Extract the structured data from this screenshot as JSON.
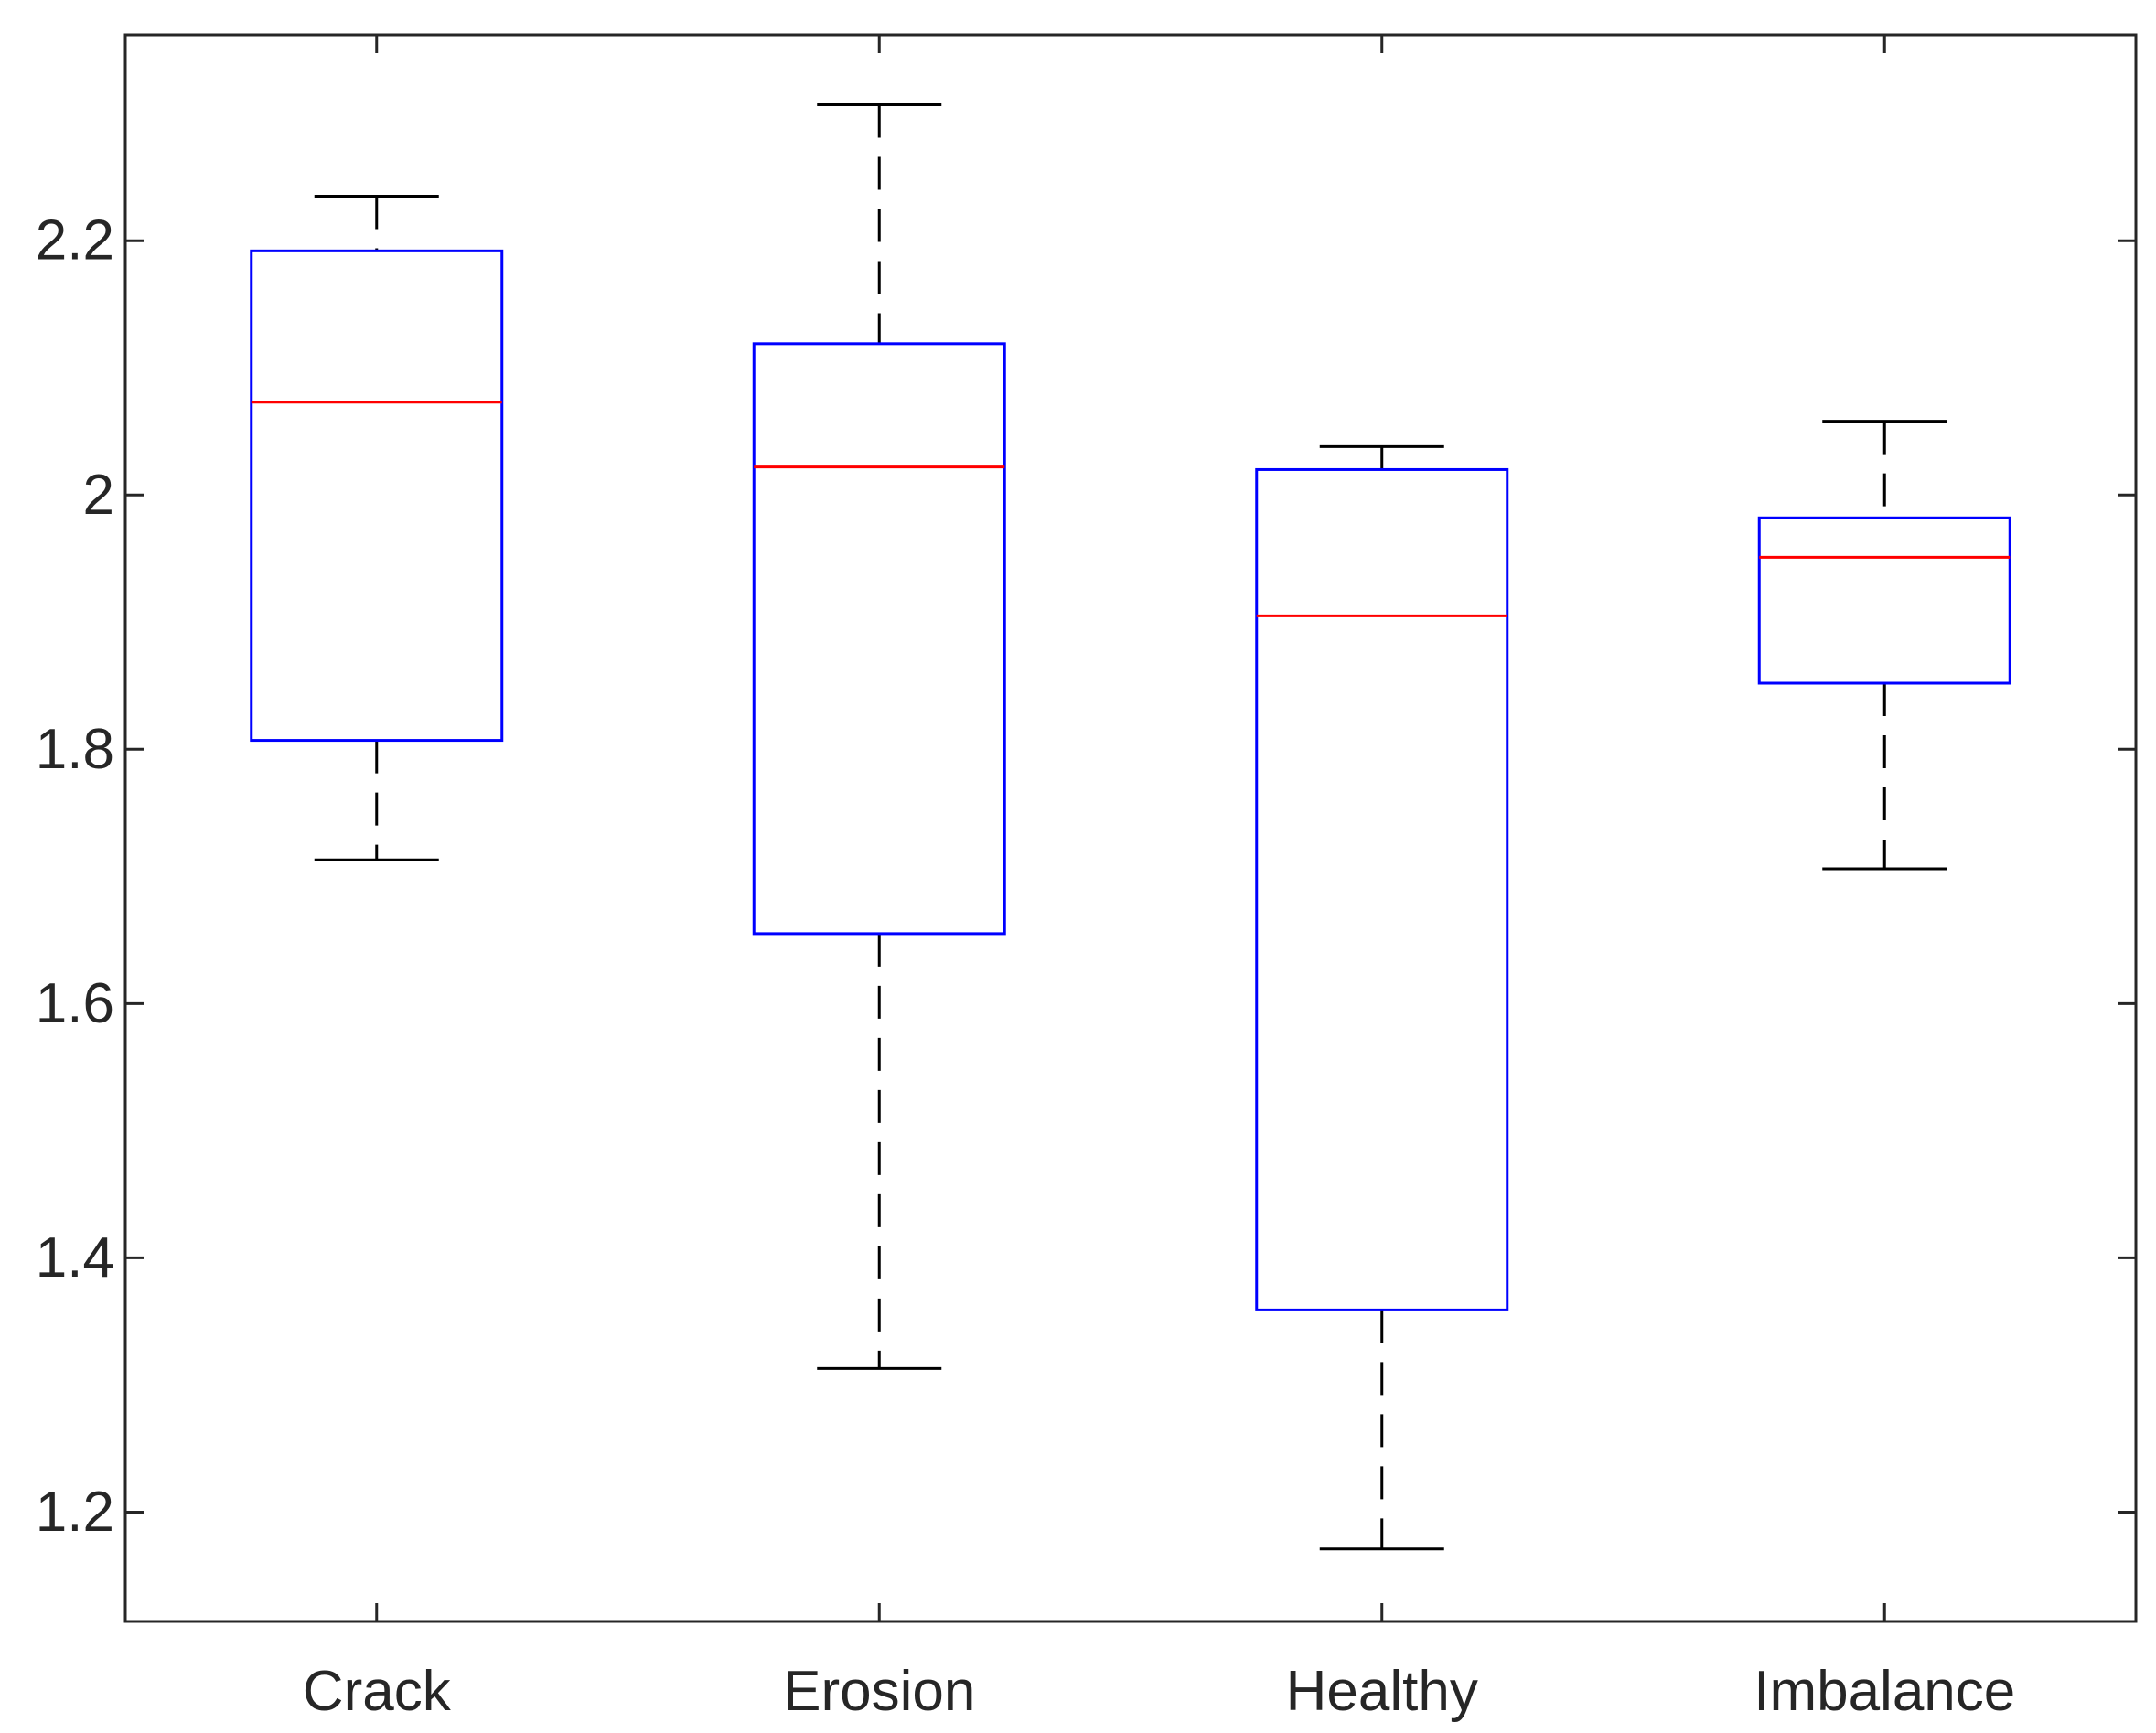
{
  "chart_data": {
    "type": "boxplot",
    "title": "",
    "xlabel": "",
    "ylabel": "",
    "categories": [
      "Crack",
      "Erosion",
      "Healthy",
      "Imbalance"
    ],
    "boxes": [
      {
        "name": "Crack",
        "whisker_low": 1.713,
        "q1": 1.807,
        "median": 2.073,
        "q3": 2.192,
        "whisker_high": 2.235
      },
      {
        "name": "Erosion",
        "whisker_low": 1.313,
        "q1": 1.655,
        "median": 2.022,
        "q3": 2.119,
        "whisker_high": 2.307
      },
      {
        "name": "Healthy",
        "whisker_low": 1.171,
        "q1": 1.359,
        "median": 1.905,
        "q3": 2.02,
        "whisker_high": 2.038
      },
      {
        "name": "Imbalance",
        "whisker_low": 1.706,
        "q1": 1.852,
        "median": 1.951,
        "q3": 1.982,
        "whisker_high": 2.058
      }
    ],
    "yticks": [
      1.2,
      1.4,
      1.6,
      1.8,
      2,
      2.2
    ],
    "ytick_labels": [
      "1.2",
      "1.4",
      "1.6",
      "1.8",
      "2",
      "2.2"
    ],
    "ylim": [
      1.114,
      2.362
    ],
    "grid": false,
    "colors": {
      "box": "#0000ff",
      "median": "#ff0000",
      "whisker": "#000000",
      "axis": "#262626",
      "text": "#262626"
    }
  }
}
